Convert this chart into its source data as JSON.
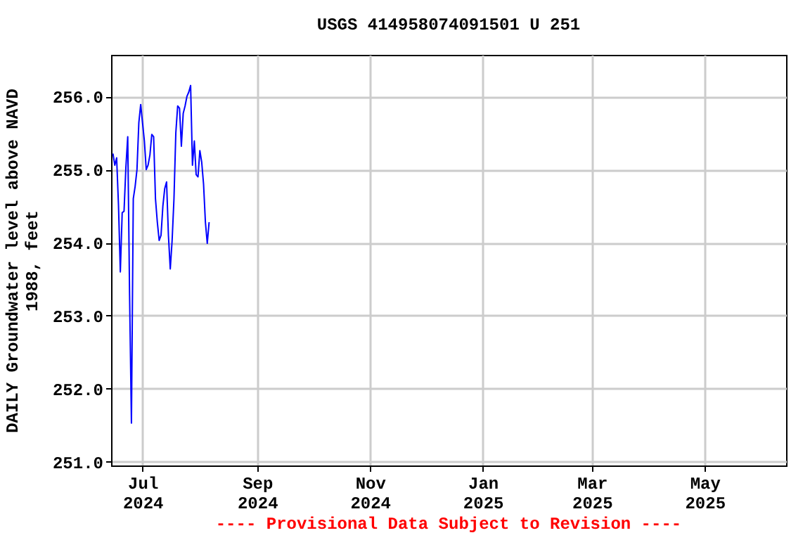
{
  "chart_data": {
    "type": "line",
    "title": "USGS 414958074091501 U 251",
    "ylabel": "DAILY Groundwater level above NAVD 1988, feet",
    "annotations": [
      "---- Provisional Data Subject to Revision ----"
    ],
    "x": [
      "2024-06-15",
      "2024-06-16",
      "2024-06-17",
      "2024-06-18",
      "2024-06-19",
      "2024-06-20",
      "2024-06-21",
      "2024-06-22",
      "2024-06-23",
      "2024-06-24",
      "2024-06-25",
      "2024-06-26",
      "2024-06-27",
      "2024-06-28",
      "2024-06-29",
      "2024-06-30",
      "2024-07-01",
      "2024-07-02",
      "2024-07-03",
      "2024-07-04",
      "2024-07-05",
      "2024-07-06",
      "2024-07-07",
      "2024-07-08",
      "2024-07-09",
      "2024-07-10",
      "2024-07-11",
      "2024-07-12",
      "2024-07-13",
      "2024-07-14",
      "2024-07-15",
      "2024-07-16",
      "2024-07-17",
      "2024-07-18",
      "2024-07-19",
      "2024-07-20",
      "2024-07-21",
      "2024-07-22",
      "2024-07-23",
      "2024-07-24",
      "2024-07-25",
      "2024-07-26",
      "2024-07-27",
      "2024-07-28",
      "2024-07-29",
      "2024-07-30",
      "2024-07-31",
      "2024-08-01",
      "2024-08-02",
      "2024-08-03",
      "2024-08-04",
      "2024-08-05",
      "2024-08-06"
    ],
    "series": [
      {
        "color": "#0000ff",
        "values": [
          255.22,
          255.06,
          255.16,
          254.51,
          253.6,
          254.41,
          254.43,
          255.03,
          255.45,
          253.28,
          251.53,
          254.6,
          254.77,
          255.0,
          255.64,
          255.89,
          255.64,
          255.39,
          255.0,
          255.06,
          255.2,
          255.48,
          255.45,
          254.6,
          254.28,
          254.03,
          254.1,
          254.5,
          254.74,
          254.83,
          254.1,
          253.64,
          254.03,
          254.6,
          255.5,
          255.87,
          255.84,
          255.32,
          255.77,
          255.87,
          256.0,
          256.06,
          256.15,
          255.06,
          255.39,
          254.93,
          254.9,
          255.26,
          255.1,
          254.8,
          254.28,
          253.99,
          254.28
        ]
      }
    ],
    "xlim": [
      "2024-06-14",
      "2025-06-14"
    ],
    "xticks": [
      {
        "value": "2024-07-01",
        "label": "Jul 2024"
      },
      {
        "value": "2024-09-01",
        "label": "Sep 2024"
      },
      {
        "value": "2024-11-01",
        "label": "Nov 2024"
      },
      {
        "value": "2025-01-01",
        "label": "Jan 2025"
      },
      {
        "value": "2025-03-01",
        "label": "Mar 2025"
      },
      {
        "value": "2025-05-01",
        "label": "May 2025"
      }
    ],
    "ylim": [
      250.95,
      256.57
    ],
    "yticks": [
      {
        "value": 251,
        "label": "251.0"
      },
      {
        "value": 252,
        "label": "252.0"
      },
      {
        "value": 253,
        "label": "253.0"
      },
      {
        "value": 254,
        "label": "254.0"
      },
      {
        "value": 255,
        "label": "255.0"
      },
      {
        "value": 256,
        "label": "256.0"
      }
    ],
    "grid": true,
    "marker": "none",
    "line_style": "solid"
  }
}
